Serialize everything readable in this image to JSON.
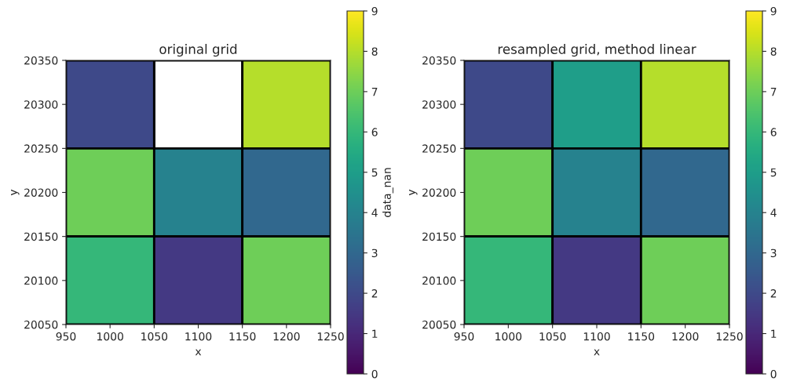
{
  "chart_data": [
    {
      "type": "heatmap",
      "title": "original grid",
      "xlabel": "x",
      "ylabel": "y",
      "clabel": "data_nan",
      "x": [
        1000,
        1100,
        1200
      ],
      "y": [
        20300,
        20200,
        20100
      ],
      "cells": [
        [
          2,
          null,
          8
        ],
        [
          7,
          4,
          3
        ],
        [
          6,
          1.5,
          7
        ]
      ],
      "xlim": [
        950,
        1250
      ],
      "ylim": [
        20050,
        20350
      ],
      "xticks": [
        950,
        1000,
        1050,
        1100,
        1150,
        1200,
        1250
      ],
      "yticks": [
        20050,
        20100,
        20150,
        20200,
        20250,
        20300,
        20350
      ],
      "clim": [
        0,
        9
      ],
      "cticks": [
        0,
        1,
        2,
        3,
        4,
        5,
        6,
        7,
        8,
        9
      ]
    },
    {
      "type": "heatmap",
      "title": "resampled grid, method linear",
      "xlabel": "x",
      "ylabel": "y",
      "x": [
        1000,
        1100,
        1200
      ],
      "y": [
        20300,
        20200,
        20100
      ],
      "cells": [
        [
          2,
          5,
          8
        ],
        [
          7,
          4,
          3
        ],
        [
          6,
          1.5,
          7
        ]
      ],
      "xlim": [
        950,
        1250
      ],
      "ylim": [
        20050,
        20350
      ],
      "xticks": [
        950,
        1000,
        1050,
        1100,
        1150,
        1200,
        1250
      ],
      "yticks": [
        20050,
        20100,
        20150,
        20200,
        20250,
        20300,
        20350
      ],
      "clim": [
        0,
        9
      ],
      "cticks": [
        0,
        1,
        2,
        3,
        4,
        5,
        6,
        7,
        8,
        9
      ]
    }
  ]
}
